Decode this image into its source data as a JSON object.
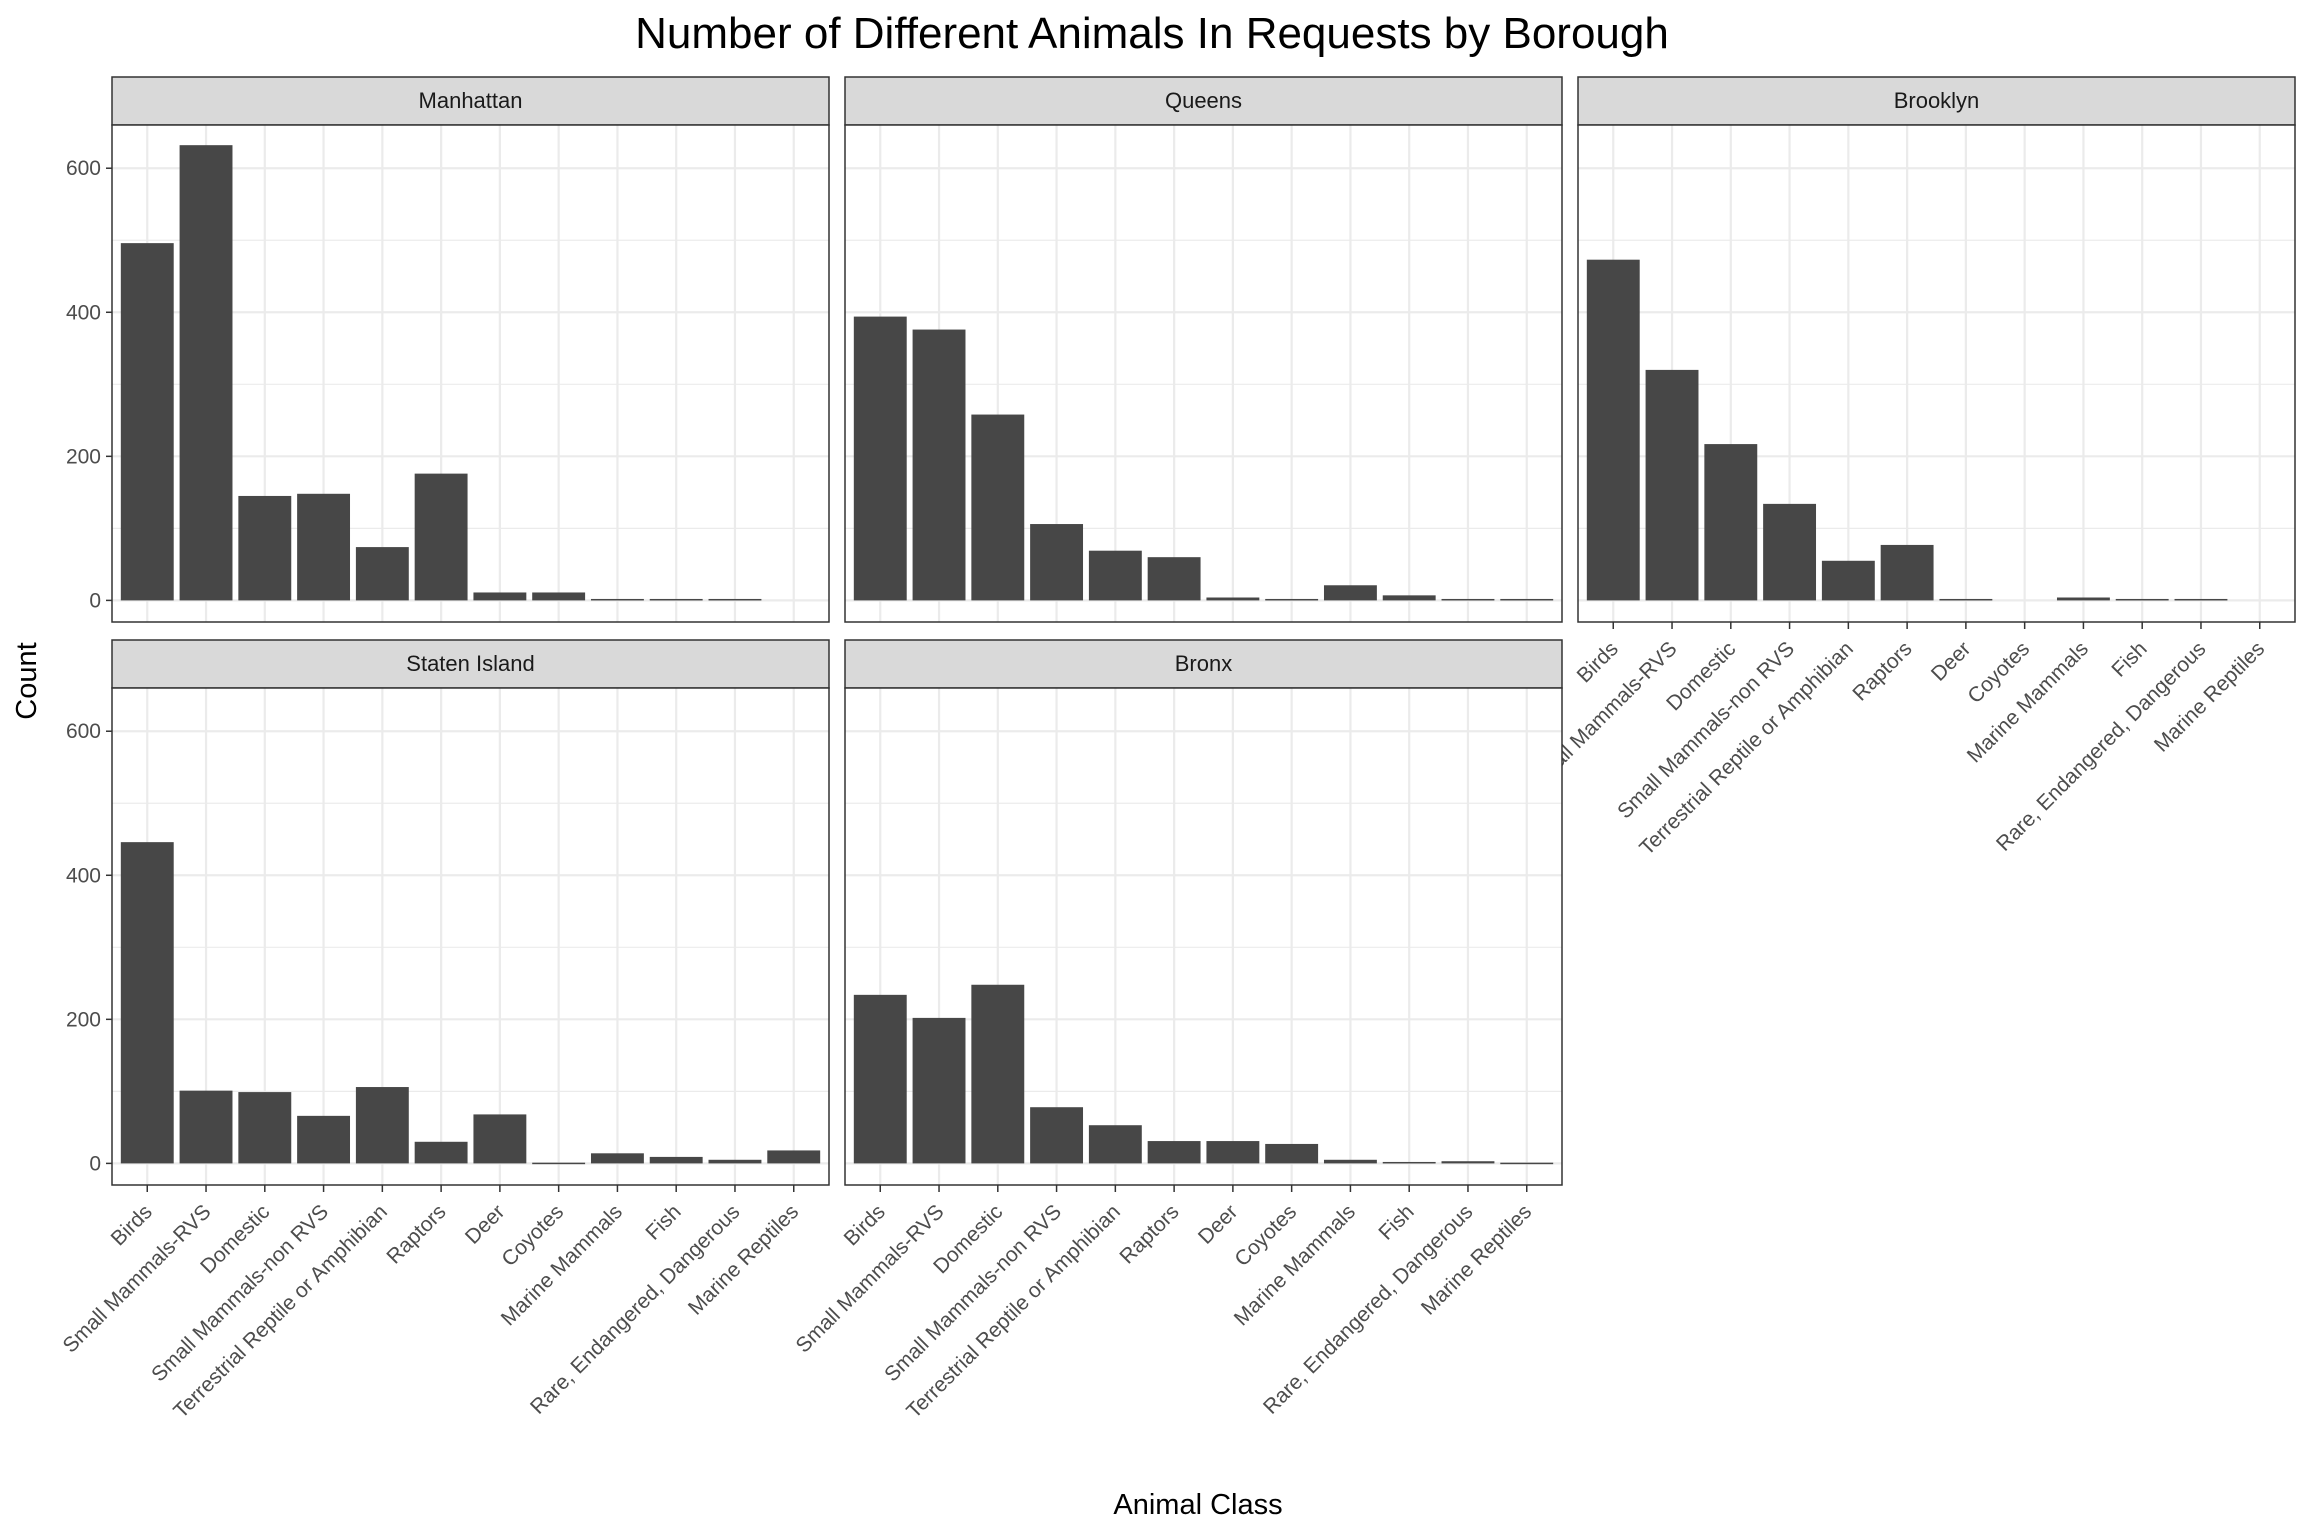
{
  "chart_data": {
    "type": "bar",
    "title": "Number of Different Animals In Requests by Borough",
    "xlabel": "Animal Class",
    "ylabel": "Count",
    "ylim": [
      0,
      660
    ],
    "yticks": [
      0,
      200,
      400,
      600
    ],
    "grid": true,
    "legend": "none",
    "categories": [
      "Birds",
      "Small Mammals-RVS",
      "Domestic",
      "Small Mammals-non RVS",
      "Terrestrial Reptile or Amphibian",
      "Raptors",
      "Deer",
      "Coyotes",
      "Marine Mammals",
      "Fish",
      "Rare, Endangered, Dangerous",
      "Marine Reptiles"
    ],
    "facets": [
      {
        "name": "Manhattan",
        "values": [
          496,
          632,
          145,
          148,
          74,
          176,
          11,
          11,
          2,
          2,
          2,
          0
        ]
      },
      {
        "name": "Queens",
        "values": [
          394,
          376,
          258,
          106,
          69,
          60,
          4,
          2,
          21,
          7,
          2,
          2
        ]
      },
      {
        "name": "Brooklyn",
        "values": [
          473,
          320,
          217,
          134,
          55,
          77,
          2,
          0,
          4,
          2,
          2,
          0
        ]
      },
      {
        "name": "Staten Island",
        "values": [
          446,
          101,
          99,
          66,
          106,
          30,
          68,
          1,
          14,
          9,
          5,
          18
        ]
      },
      {
        "name": "Bronx",
        "values": [
          234,
          202,
          248,
          78,
          53,
          31,
          31,
          27,
          5,
          2,
          3,
          1
        ]
      }
    ]
  },
  "colors": {
    "bar": "#474747",
    "strip_fill": "#d9d9d9",
    "grid": "#ebebeb",
    "border": "#333333"
  }
}
